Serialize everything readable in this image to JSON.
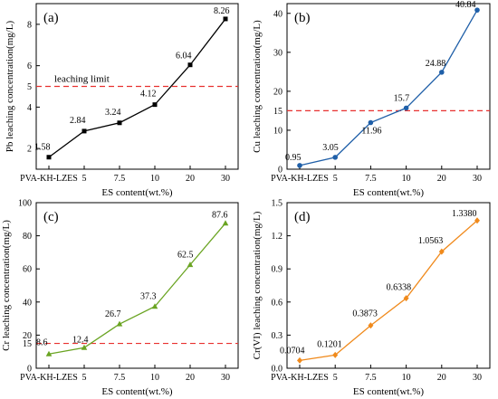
{
  "chart_data": [
    {
      "type": "line",
      "panel_label": "(a)",
      "categories": [
        "PVA-KH-LZES",
        "5",
        "7.5",
        "10",
        "20",
        "30"
      ],
      "values": [
        1.58,
        2.84,
        3.24,
        4.12,
        6.04,
        8.26
      ],
      "value_labels": [
        "1.58",
        "2.84",
        "3.24",
        "4.12",
        "6.04",
        "8.26"
      ],
      "xlabel": "ES content(wt.%)",
      "ylabel": "Pb leaching concentration(mg/L)",
      "ylim": [
        1,
        9
      ],
      "yticks": [
        2,
        4,
        5,
        6,
        8
      ],
      "ytick_labels": [
        "2",
        "4",
        "5",
        "6",
        "8"
      ],
      "color": "#000000",
      "marker": "square",
      "limit": 5,
      "limit_label": "leaching limit",
      "limit_color": "#e8312f"
    },
    {
      "type": "line",
      "panel_label": "(b)",
      "categories": [
        "PVA-KH-LZES",
        "5",
        "7.5",
        "10",
        "20",
        "30"
      ],
      "values": [
        0.95,
        3.05,
        11.96,
        15.7,
        24.88,
        40.84
      ],
      "value_labels": [
        "0.95",
        "3.05",
        "11.96",
        "15.7",
        "24.88",
        "40.84"
      ],
      "xlabel": "ES content(wt.%)",
      "ylabel": "Cu leaching concentration(mg/L)",
      "ylim": [
        0,
        42.5
      ],
      "yticks": [
        0,
        10,
        15,
        20,
        30,
        40
      ],
      "ytick_labels": [
        "0",
        "10",
        "15",
        "20",
        "30",
        "40"
      ],
      "color": "#1f5fa8",
      "marker": "circle",
      "limit": 15,
      "limit_label": "",
      "limit_color": "#e8312f"
    },
    {
      "type": "line",
      "panel_label": "(c)",
      "categories": [
        "PVA-KH-LZES",
        "5",
        "7.5",
        "10",
        "20",
        "30"
      ],
      "values": [
        8.6,
        12.4,
        26.7,
        37.3,
        62.5,
        87.6
      ],
      "value_labels": [
        "8.6",
        "12.4",
        "26.7",
        "37.3",
        "62.5",
        "87.6"
      ],
      "xlabel": "ES content(wt.%)",
      "ylabel": "Cr leaching concentration(mg/L)",
      "ylim": [
        0,
        100
      ],
      "yticks": [
        0,
        15,
        20,
        40,
        60,
        80,
        100
      ],
      "ytick_labels": [
        "0",
        "15",
        "20",
        "40",
        "60",
        "80",
        "100"
      ],
      "color": "#6aa422",
      "marker": "triangle",
      "limit": 15,
      "limit_label": "",
      "limit_color": "#e8312f"
    },
    {
      "type": "line",
      "panel_label": "(d)",
      "categories": [
        "PVA-KH-LZES",
        "5",
        "7.5",
        "10",
        "20",
        "30"
      ],
      "values": [
        0.0704,
        0.1201,
        0.3873,
        0.6338,
        1.0563,
        1.338
      ],
      "value_labels": [
        "0.0704",
        "0.1201",
        "0.3873",
        "0.6338",
        "1.0563",
        "1.3380"
      ],
      "xlabel": "ES content(wt.%)",
      "ylabel": "Cr(VI) leaching concentration(mg/L)",
      "ylim": [
        0,
        1.5
      ],
      "yticks": [
        0,
        0.3,
        0.6,
        0.9,
        1.2,
        1.5
      ],
      "ytick_labels": [
        "0.0",
        "0.3",
        "0.6",
        "0.9",
        "1.2",
        "1.5"
      ],
      "color": "#f08a1c",
      "marker": "diamond",
      "limit": null,
      "limit_label": "",
      "limit_color": "#e8312f"
    }
  ]
}
